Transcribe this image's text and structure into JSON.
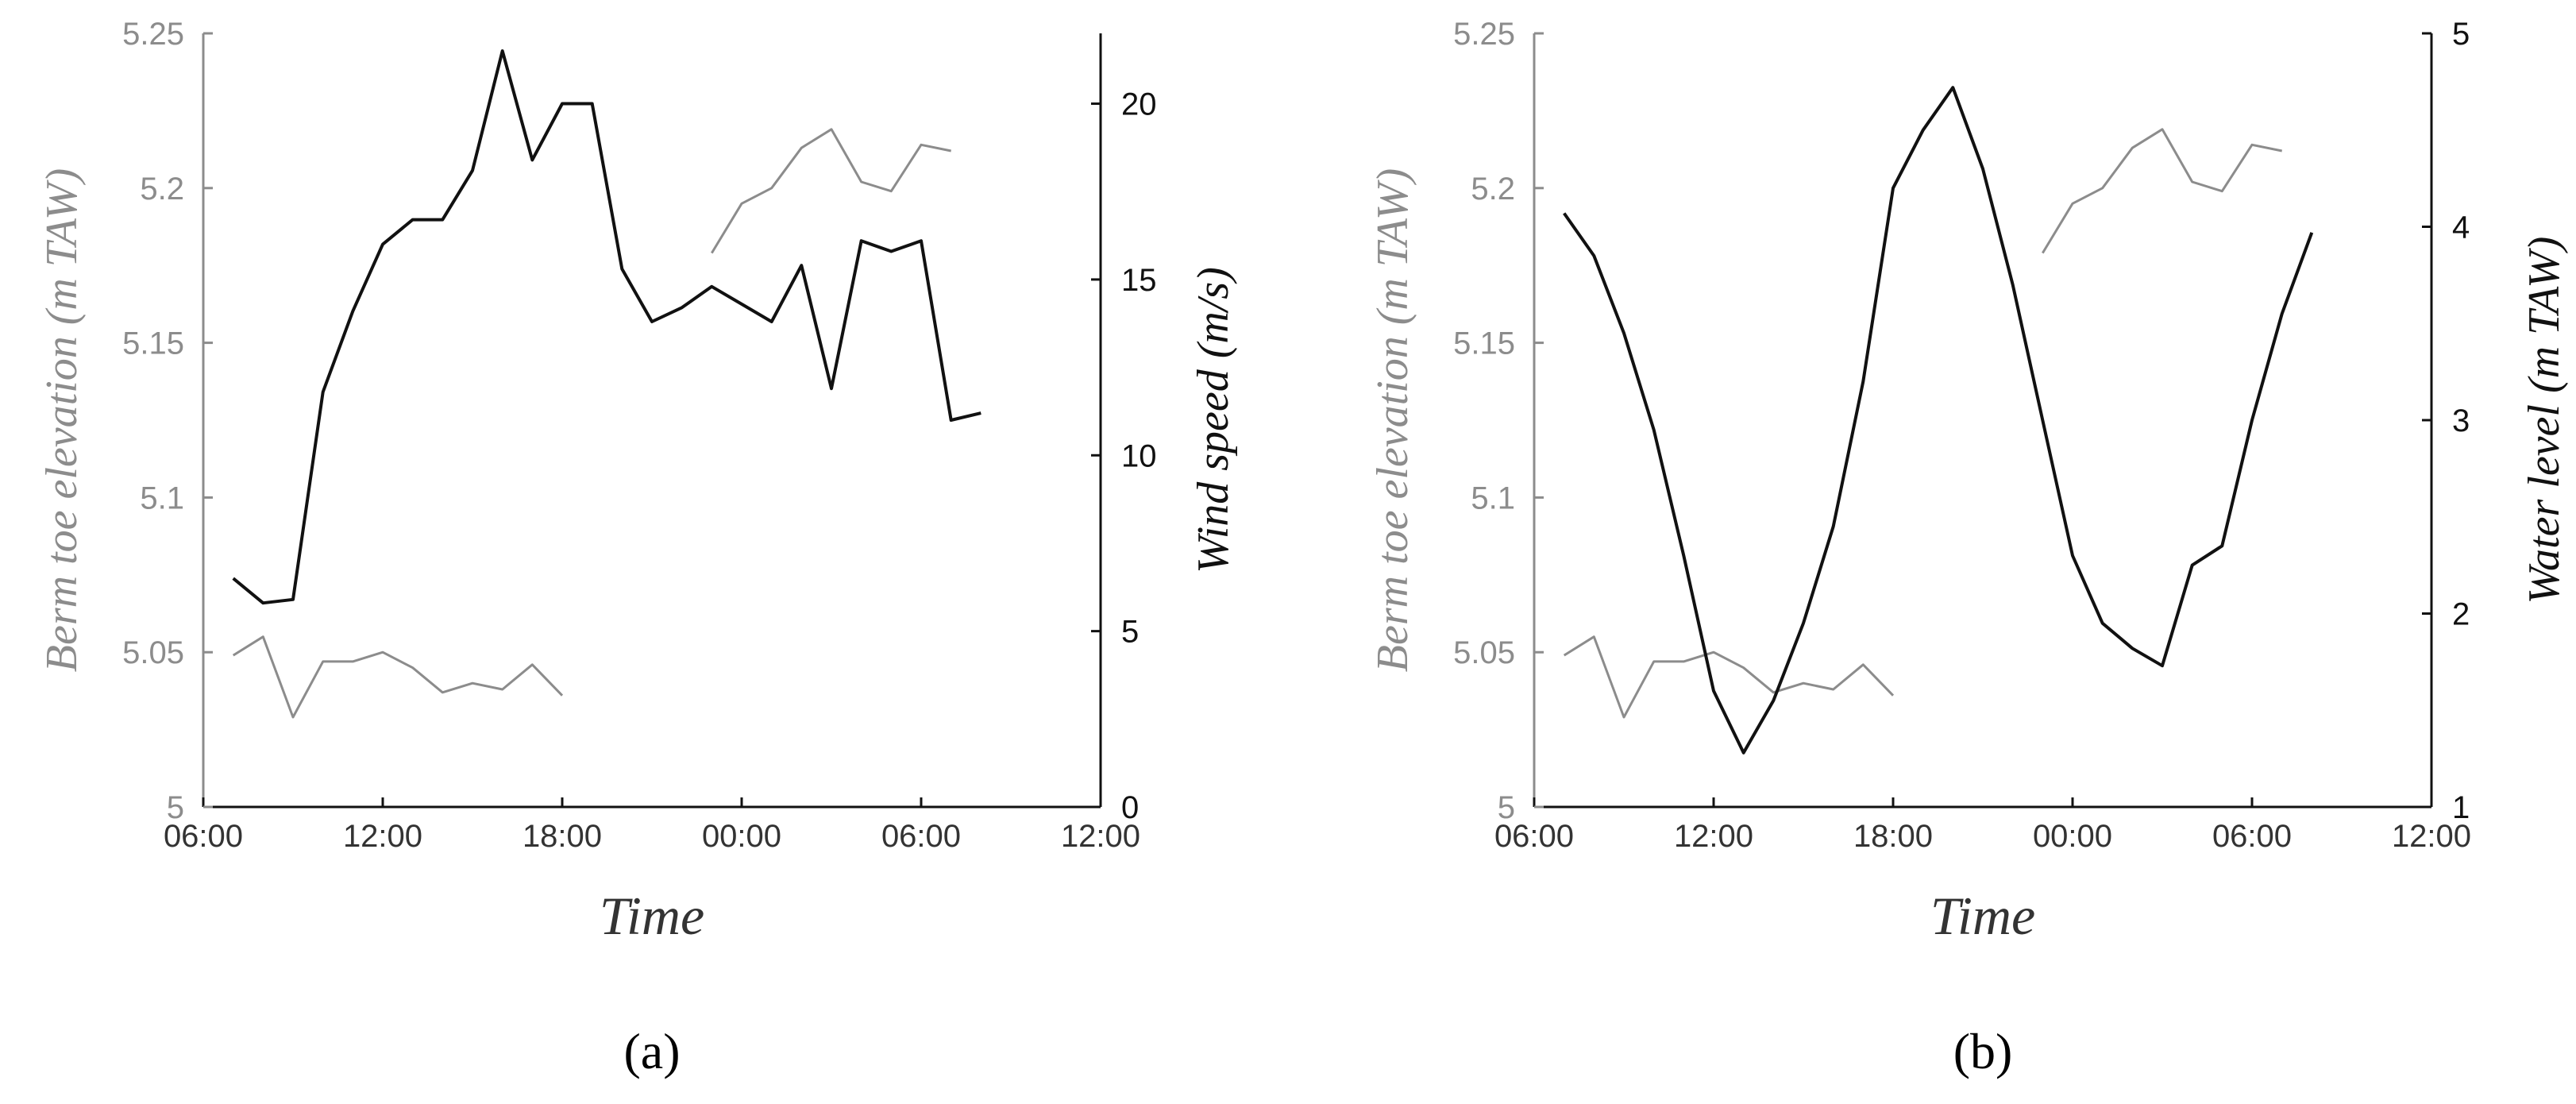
{
  "colors": {
    "berm": "#8c8c8c",
    "secondary": "#111111",
    "axis_left": "#8c8c8c",
    "axis_right": "#111111"
  },
  "chart_data": [
    {
      "type": "line",
      "panel_label": "(a)",
      "xlabel": "Time",
      "ylabel_left": "Berm toe elevation (m TAW)",
      "ylabel_right": "Wind speed (m/s)",
      "x_range_hours": [
        6,
        36
      ],
      "x_ticks": [
        "06:00",
        "12:00",
        "18:00",
        "00:00",
        "06:00",
        "12:00"
      ],
      "ylim_left": [
        5,
        5.25
      ],
      "y_ticks_left": [
        "5",
        "5.05",
        "5.1",
        "5.15",
        "5.2",
        "5.25"
      ],
      "ylim_right": [
        0,
        22
      ],
      "y_ticks_right": [
        "0",
        "5",
        "10",
        "15",
        "20"
      ],
      "grid": false,
      "series": [
        {
          "name": "",
          "axis": "left",
          "color": "#8c8c8c",
          "segments": [
            {
              "x": [
                "07:00",
                "08:00",
                "09:00",
                "10:00",
                "11:00",
                "12:00",
                "13:00",
                "14:00",
                "15:00",
                "16:00",
                "17:00",
                "18:00"
              ],
              "y": [
                5.049,
                5.055,
                5.029,
                5.047,
                5.047,
                5.05,
                5.045,
                5.037,
                5.04,
                5.038,
                5.046,
                5.036
              ]
            },
            {
              "x": [
                "23:00",
                "00:00",
                "01:00",
                "02:00",
                "03:00",
                "04:00",
                "05:00",
                "06:00",
                "07:00"
              ],
              "y": [
                5.179,
                5.195,
                5.2,
                5.213,
                5.219,
                5.202,
                5.199,
                5.214,
                5.212
              ]
            }
          ]
        },
        {
          "name": "",
          "axis": "right",
          "color": "#111111",
          "segments": [
            {
              "x": [
                "07:00",
                "08:00",
                "09:00",
                "10:00",
                "11:00",
                "12:00",
                "13:00",
                "14:00",
                "15:00",
                "16:00",
                "17:00",
                "18:00",
                "19:00",
                "20:00",
                "21:00",
                "22:00",
                "23:00",
                "00:00",
                "01:00",
                "02:00",
                "03:00",
                "04:00",
                "05:00",
                "06:00",
                "07:00",
                "08:00"
              ],
              "y": [
                6.5,
                5.8,
                5.9,
                11.8,
                14.1,
                16.0,
                16.7,
                16.7,
                18.1,
                21.5,
                18.4,
                20.0,
                20.0,
                15.3,
                13.8,
                14.2,
                14.8,
                14.3,
                13.8,
                15.4,
                11.9,
                16.1,
                15.8,
                16.1,
                11.0,
                11.2
              ]
            }
          ]
        }
      ]
    },
    {
      "type": "line",
      "panel_label": "(b)",
      "xlabel": "Time",
      "ylabel_left": "Berm toe elevation (m TAW)",
      "ylabel_right": "Water level (m TAW)",
      "x_range_hours": [
        6,
        36
      ],
      "x_ticks": [
        "06:00",
        "12:00",
        "18:00",
        "00:00",
        "06:00",
        "12:00"
      ],
      "ylim_left": [
        5,
        5.25
      ],
      "y_ticks_left": [
        "5",
        "5.05",
        "5.1",
        "5.15",
        "5.2",
        "5.25"
      ],
      "ylim_right": [
        1,
        5
      ],
      "y_ticks_right": [
        "1",
        "2",
        "3",
        "4",
        "5"
      ],
      "grid": false,
      "series": [
        {
          "name": "",
          "axis": "left",
          "color": "#8c8c8c",
          "segments": [
            {
              "x": [
                "07:00",
                "08:00",
                "09:00",
                "10:00",
                "11:00",
                "12:00",
                "13:00",
                "14:00",
                "15:00",
                "16:00",
                "17:00",
                "18:00"
              ],
              "y": [
                5.049,
                5.055,
                5.029,
                5.047,
                5.047,
                5.05,
                5.045,
                5.037,
                5.04,
                5.038,
                5.046,
                5.036
              ]
            },
            {
              "x": [
                "23:00",
                "00:00",
                "01:00",
                "02:00",
                "03:00",
                "04:00",
                "05:00",
                "06:00",
                "07:00"
              ],
              "y": [
                5.179,
                5.195,
                5.2,
                5.213,
                5.219,
                5.202,
                5.199,
                5.214,
                5.212
              ]
            }
          ]
        },
        {
          "name": "",
          "axis": "right",
          "color": "#111111",
          "segments": [
            {
              "x": [
                "07:00",
                "08:00",
                "09:00",
                "10:00",
                "11:00",
                "12:00",
                "13:00",
                "14:00",
                "15:00",
                "16:00",
                "17:00",
                "18:00",
                "19:00",
                "20:00",
                "21:00",
                "22:00",
                "23:00",
                "00:00",
                "01:00",
                "02:00",
                "03:00",
                "04:00",
                "05:00",
                "06:00",
                "07:00",
                "08:00"
              ],
              "y": [
                4.07,
                3.85,
                3.45,
                2.95,
                2.3,
                1.6,
                1.28,
                1.55,
                1.95,
                2.45,
                3.2,
                4.2,
                4.5,
                4.72,
                4.3,
                3.7,
                3.0,
                2.3,
                1.95,
                1.82,
                1.73,
                2.25,
                2.35,
                3.0,
                3.55,
                3.97
              ]
            }
          ]
        }
      ]
    }
  ]
}
